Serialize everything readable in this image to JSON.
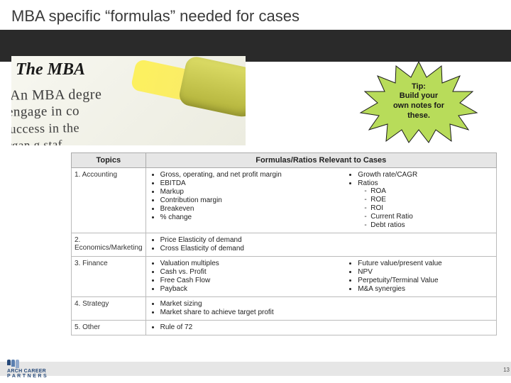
{
  "slide": {
    "title": "MBA specific “formulas” needed for cases",
    "page_number": "13"
  },
  "photo": {
    "heading": "The MBA",
    "lines": [
      "An MBA degre",
      "engage in co",
      "success in the",
      "organ     g staf"
    ]
  },
  "callout": {
    "lines": [
      "Tip:",
      "Build your",
      "own notes for",
      "these."
    ]
  },
  "table": {
    "headers": {
      "topics": "Topics",
      "formulas": "Formulas/Ratios Relevant to Cases"
    },
    "rows": [
      {
        "topic": "1. Accounting",
        "left": [
          "Gross, operating, and net profit margin",
          "EBITDA",
          "Markup",
          "Contribution margin",
          "Breakeven",
          "% change"
        ],
        "right": [
          "Growth rate/CAGR",
          "Ratios"
        ],
        "right_sub": [
          "ROA",
          "ROE",
          "ROI",
          "Current Ratio",
          "Debt ratios"
        ]
      },
      {
        "topic": "2. Economics/Marketing",
        "left": [
          "Price Elasticity of demand",
          "Cross Elasticity of demand"
        ],
        "right": [],
        "right_sub": []
      },
      {
        "topic": "3. Finance",
        "left": [
          "Valuation multiples",
          "Cash vs. Profit",
          "Free Cash Flow",
          "Payback"
        ],
        "right": [
          "Future value/present value",
          "NPV",
          "Perpetuity/Terminal Value",
          "M&A synergies"
        ],
        "right_sub": []
      },
      {
        "topic": "4. Strategy",
        "left": [
          "Market sizing",
          "Market share to achieve target profit"
        ],
        "right": [],
        "right_sub": []
      },
      {
        "topic": "5. Other",
        "left": [
          "Rule of 72"
        ],
        "right": [],
        "right_sub": []
      }
    ]
  },
  "logo": {
    "line1": "ARCH CAREER",
    "line2": "P A R T N E R S"
  },
  "colors": {
    "burst_fill": "#b8dc5a",
    "burst_stroke": "#1a1a1a"
  }
}
